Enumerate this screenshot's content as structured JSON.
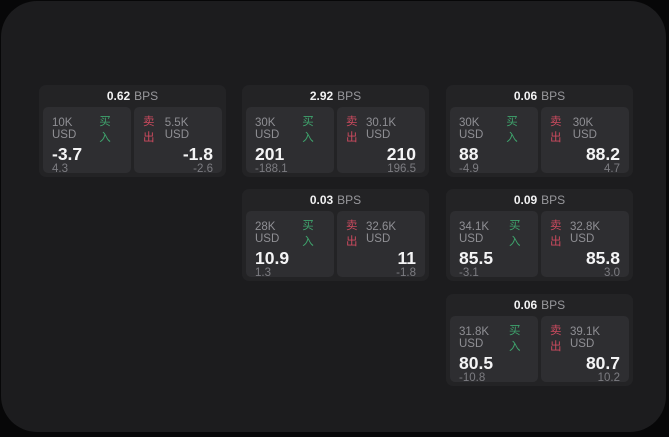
{
  "labels": {
    "bps_unit": "BPS",
    "buy": "买入",
    "sell": "卖出"
  },
  "colors": {
    "buy_green": "#3fa46d",
    "sell_red": "#cb4a5e",
    "panel_bg": "#1c1c1e",
    "card_bg": "#232325",
    "quote_bg": "#2e2e31",
    "outer_bg": "#070708",
    "primary_text": "#f2f2f3",
    "secondary_text": "#8f8f94"
  },
  "cards": [
    {
      "bps": "0.62",
      "grid": {
        "row": 1,
        "col": 1
      },
      "buy": {
        "size": "10K USD",
        "price": "-3.7",
        "delta": "4.3"
      },
      "sell": {
        "size": "5.5K USD",
        "price": "-1.8",
        "delta": "-2.6"
      }
    },
    {
      "bps": "2.92",
      "grid": {
        "row": 1,
        "col": 2
      },
      "buy": {
        "size": "30K USD",
        "price": "201",
        "delta": "-188.1"
      },
      "sell": {
        "size": "30.1K USD",
        "price": "210",
        "delta": "196.5"
      }
    },
    {
      "bps": "0.06",
      "grid": {
        "row": 1,
        "col": 3
      },
      "buy": {
        "size": "30K USD",
        "price": "88",
        "delta": "-4.9"
      },
      "sell": {
        "size": "30K USD",
        "price": "88.2",
        "delta": "4.7"
      }
    },
    {
      "bps": "0.03",
      "grid": {
        "row": 2,
        "col": 2
      },
      "buy": {
        "size": "28K USD",
        "price": "10.9",
        "delta": "1.3"
      },
      "sell": {
        "size": "32.6K USD",
        "price": "11",
        "delta": "-1.8"
      }
    },
    {
      "bps": "0.09",
      "grid": {
        "row": 2,
        "col": 3
      },
      "buy": {
        "size": "34.1K USD",
        "price": "85.5",
        "delta": "-3.1"
      },
      "sell": {
        "size": "32.8K USD",
        "price": "85.8",
        "delta": "3.0"
      }
    },
    {
      "bps": "0.06",
      "grid": {
        "row": 3,
        "col": 3
      },
      "buy": {
        "size": "31.8K USD",
        "price": "80.5",
        "delta": "-10.8"
      },
      "sell": {
        "size": "39.1K USD",
        "price": "80.7",
        "delta": "10.2"
      }
    }
  ]
}
